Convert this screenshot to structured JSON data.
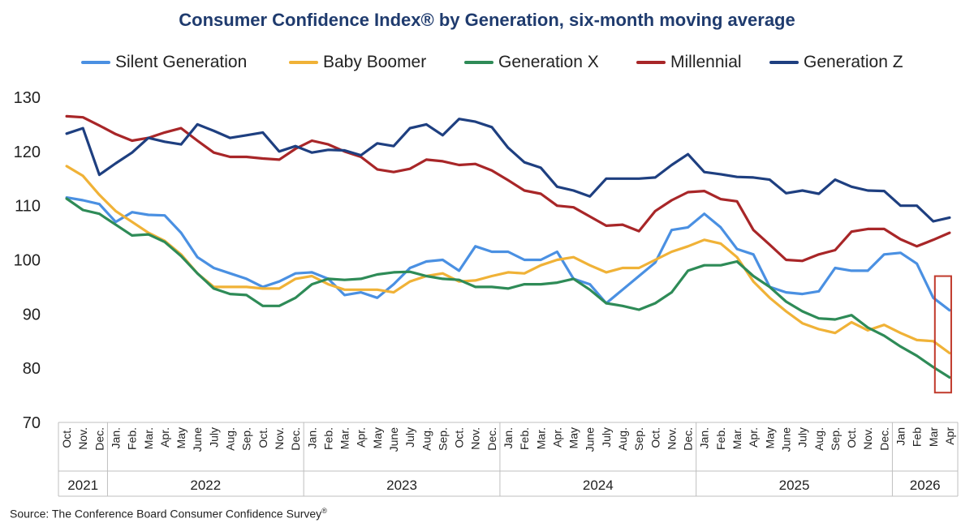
{
  "chart_data": {
    "type": "line",
    "title": "Consumer Confidence Index® by Generation, six-month moving average",
    "source": "Source: The Conference Board Consumer Confidence Survey",
    "source_mark": "®",
    "ylim": [
      70,
      130
    ],
    "yticks": [
      70,
      80,
      90,
      100,
      110,
      120,
      130
    ],
    "grid": false,
    "legend_position": "top",
    "x_labels": [
      "Oct.",
      "Nov.",
      "Dec.",
      "Jan.",
      "Feb.",
      "Mar.",
      "Apr.",
      "May",
      "June",
      "July",
      "Aug.",
      "Sep.",
      "Oct.",
      "Nov.",
      "Dec.",
      "Jan.",
      "Feb.",
      "Mar.",
      "Apr.",
      "May",
      "June",
      "July",
      "Aug.",
      "Sep.",
      "Oct.",
      "Nov.",
      "Dec.",
      "Jan.",
      "Feb.",
      "Mar.",
      "Apr.",
      "May",
      "June",
      "July",
      "Aug.",
      "Sep.",
      "Oct.",
      "Nov.",
      "Dec.",
      "Jan.",
      "Feb.",
      "Mar.",
      "Apr.",
      "May",
      "June",
      "July",
      "Aug.",
      "Sep.",
      "Oct.",
      "Nov.",
      "Dec.",
      "Jan",
      "Feb",
      "Mar",
      "Apr"
    ],
    "years": [
      {
        "label": "2021",
        "start": 0,
        "end": 2
      },
      {
        "label": "2022",
        "start": 3,
        "end": 14
      },
      {
        "label": "2023",
        "start": 15,
        "end": 26
      },
      {
        "label": "2024",
        "start": 27,
        "end": 38
      },
      {
        "label": "2025",
        "start": 39,
        "end": 50
      },
      {
        "label": "2026",
        "start": 51,
        "end": 54
      }
    ],
    "highlight": {
      "start": 53.6,
      "end": 54.6,
      "ymin": 75.5,
      "ymax": 97,
      "color": "#c0392b"
    },
    "series": [
      {
        "name": "Silent Generation",
        "color": "#4a90e2",
        "values": [
          111.5,
          111,
          110.3,
          107,
          108.8,
          108.3,
          108.2,
          105,
          100.5,
          98.5,
          97.5,
          96.5,
          95,
          96,
          97.5,
          97.7,
          96.5,
          93.5,
          94,
          93,
          95.5,
          98.5,
          99.7,
          100,
          98,
          102.5,
          101.5,
          101.5,
          100,
          100,
          101.5,
          96.5,
          95.5,
          92,
          94.5,
          97,
          99.5,
          105.5,
          106,
          108.5,
          106,
          102,
          101,
          95,
          94,
          93.7,
          94.2,
          98.5,
          98,
          98,
          101,
          101.3,
          99.3,
          93,
          90.7
        ]
      },
      {
        "name": "Baby Boomer",
        "color": "#f0b237",
        "values": [
          117.3,
          115.5,
          112,
          109,
          107,
          105,
          103.5,
          101,
          97.5,
          95,
          95,
          95,
          94.7,
          94.7,
          96.5,
          97,
          95.5,
          94.5,
          94.5,
          94.5,
          94,
          96,
          97,
          97.5,
          96,
          96.2,
          97,
          97.7,
          97.5,
          99,
          100,
          100.5,
          99,
          97.7,
          98.5,
          98.5,
          100,
          101.5,
          102.5,
          103.7,
          103,
          100.5,
          96,
          93,
          90.5,
          88.3,
          87.2,
          86.5,
          88.5,
          87,
          88,
          86.5,
          85.2,
          85,
          82.8
        ]
      },
      {
        "name": "Generation X",
        "color": "#2e8b57",
        "values": [
          111.3,
          109.2,
          108.5,
          106.5,
          104.5,
          104.7,
          103.3,
          100.7,
          97.5,
          94.7,
          93.7,
          93.5,
          91.5,
          91.5,
          93,
          95.5,
          96.5,
          96.3,
          96.5,
          97.3,
          97.7,
          97.8,
          97,
          96.5,
          96.3,
          95,
          95,
          94.7,
          95.5,
          95.5,
          95.8,
          96.5,
          94.5,
          92,
          91.5,
          90.8,
          92,
          94,
          98,
          99,
          99,
          99.7,
          97,
          95,
          92.3,
          90.5,
          89.2,
          89,
          89.8,
          87.5,
          86,
          84,
          82.3,
          80.2,
          78.3
        ]
      },
      {
        "name": "Millennial",
        "color": "#a82628",
        "values": [
          126.5,
          126.3,
          124.8,
          123.2,
          122,
          122.5,
          123.5,
          124.3,
          122,
          119.8,
          119,
          119,
          118.7,
          118.5,
          120.5,
          122,
          121.3,
          120,
          119,
          116.7,
          116.2,
          116.8,
          118.5,
          118.2,
          117.5,
          117.7,
          116.5,
          114.7,
          112.8,
          112.2,
          110,
          109.7,
          108,
          106.3,
          106.5,
          105.3,
          109,
          111,
          112.5,
          112.7,
          111.2,
          110.8,
          105.5,
          102.8,
          100,
          99.8,
          101,
          101.8,
          105.2,
          105.7,
          105.7,
          103.8,
          102.5,
          103.7,
          105
        ]
      },
      {
        "name": "Generation Z",
        "color": "#1e3f80",
        "values": [
          123.3,
          124.3,
          115.7,
          117.8,
          119.8,
          122.5,
          121.8,
          121.3,
          125,
          123.8,
          122.5,
          123,
          123.5,
          120,
          121,
          119.8,
          120.3,
          120.2,
          119.3,
          121.5,
          121,
          124.3,
          125,
          123,
          126,
          125.5,
          124.5,
          120.7,
          118,
          117,
          113.5,
          112.8,
          111.7,
          115,
          115,
          115,
          115.2,
          117.5,
          119.5,
          116.2,
          115.8,
          115.3,
          115.2,
          114.8,
          112.3,
          112.8,
          112.2,
          114.8,
          113.5,
          112.8,
          112.7,
          110,
          110,
          107.1,
          107.8
        ]
      }
    ]
  }
}
